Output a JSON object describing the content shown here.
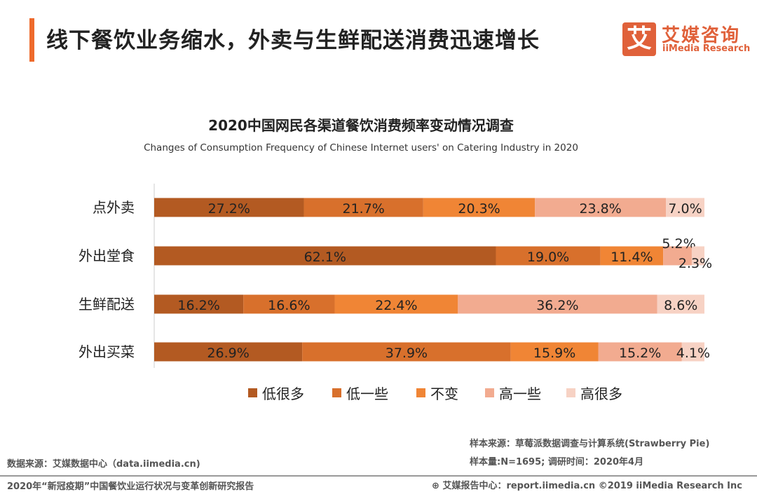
{
  "header": {
    "title": "线下餐饮业务缩水，外卖与生鲜配送消费迅速增长",
    "logo_glyph": "艾",
    "logo_cn": "艾媒咨询",
    "logo_en": "iiMedia Research",
    "accent_color": "#ee6a2c"
  },
  "chart_data": {
    "type": "bar",
    "orientation": "horizontal-stacked-100",
    "title": "2020中国网民各渠道餐饮消费频率变动情况调查",
    "subtitle": "Changes of Consumption Frequency of Chinese Internet users' on Catering Industry in 2020",
    "categories": [
      "点外卖",
      "外出堂食",
      "生鲜配送",
      "外出买菜"
    ],
    "series": [
      {
        "name": "低很多",
        "color": "#b35a22",
        "values": [
          27.2,
          62.1,
          16.2,
          26.9
        ]
      },
      {
        "name": "低一些",
        "color": "#d8702c",
        "values": [
          21.7,
          19.0,
          16.6,
          37.9
        ]
      },
      {
        "name": "不变",
        "color": "#f08535",
        "values": [
          20.3,
          11.4,
          22.4,
          15.9
        ]
      },
      {
        "name": "高一些",
        "color": "#f2ab90",
        "values": [
          23.8,
          5.2,
          36.2,
          15.2
        ]
      },
      {
        "name": "高很多",
        "color": "#f7d2c4",
        "values": [
          7.0,
          2.3,
          8.6,
          4.1
        ]
      }
    ],
    "xlim": [
      0,
      100
    ],
    "legend": "bottom",
    "data_label_format": "{v}%"
  },
  "footer": {
    "source": "数据来源：艾媒数据中心（data.iimedia.cn)",
    "sample_source": "样本来源：草莓派数据调查与计算系统(Strawberry Pie)",
    "sample_size": "样本量:N=1695; 调研时间：2020年4月",
    "report": "2020年“新冠疫期”中国餐饮业运行状况与变革创新研究报告",
    "report_center": "艾媒报告中心：report.iimedia.cn  ©2019  iiMedia Research  Inc"
  }
}
